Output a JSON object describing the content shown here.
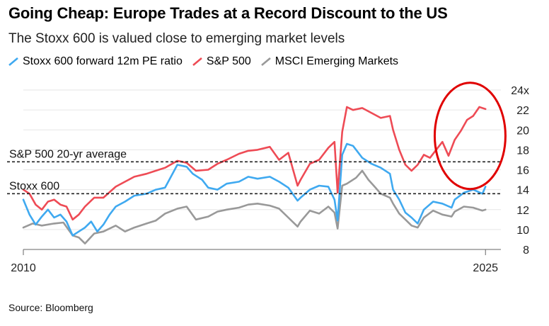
{
  "title": "Going Cheap: Europe Trades at a Record Discount to the US",
  "subtitle": "The Stoxx 600 is valued close to emerging market levels",
  "source": "Source: Bloomberg",
  "colors": {
    "stoxx": "#3fa9f0",
    "sp500": "#ee4b55",
    "em": "#999999",
    "reference": "#222222",
    "annotation": "#e00000",
    "gridline": "#e6e6e6"
  },
  "chart_data": {
    "type": "line",
    "x_label_start": "2010",
    "x_label_end": "2025",
    "xlim": [
      2010,
      2025.5
    ],
    "ylim": [
      8,
      25
    ],
    "y_tick_labels": [
      "24x",
      "22",
      "20",
      "18",
      "16",
      "14",
      "12",
      "10",
      "8"
    ],
    "y_tick_values": [
      24,
      22,
      20,
      18,
      16,
      14,
      12,
      10,
      8
    ],
    "grid": true,
    "legend_position": "top-left",
    "series": [
      {
        "name": "Stoxx 600 forward 12m PE ratio",
        "color": "#3fa9f0",
        "x": [
          2010.0,
          2010.2,
          2010.4,
          2010.6,
          2010.8,
          2011.0,
          2011.2,
          2011.4,
          2011.6,
          2011.8,
          2012.0,
          2012.2,
          2012.4,
          2012.6,
          2012.8,
          2013.0,
          2013.3,
          2013.6,
          2014.0,
          2014.3,
          2014.6,
          2015.0,
          2015.3,
          2015.5,
          2015.8,
          2016.0,
          2016.3,
          2016.6,
          2017.0,
          2017.3,
          2017.6,
          2018.0,
          2018.3,
          2018.6,
          2018.9,
          2019.0,
          2019.3,
          2019.6,
          2019.9,
          2020.1,
          2020.2,
          2020.35,
          2020.5,
          2020.7,
          2021.0,
          2021.3,
          2021.6,
          2021.9,
          2022.0,
          2022.2,
          2022.4,
          2022.6,
          2022.8,
          2023.0,
          2023.3,
          2023.6,
          2023.9,
          2024.0,
          2024.3,
          2024.6,
          2024.9,
          2025.0
        ],
        "values": [
          13.0,
          11.5,
          10.5,
          11.3,
          12.0,
          11.2,
          11.5,
          10.8,
          9.4,
          9.8,
          10.2,
          10.8,
          9.8,
          10.5,
          11.5,
          12.3,
          12.8,
          13.4,
          13.6,
          14.0,
          14.2,
          16.5,
          16.3,
          15.6,
          15.0,
          14.2,
          14.0,
          14.6,
          14.8,
          15.3,
          15.1,
          15.3,
          14.8,
          14.2,
          12.9,
          13.2,
          14.0,
          14.4,
          14.3,
          13.0,
          10.9,
          17.5,
          18.6,
          18.4,
          17.2,
          16.6,
          16.2,
          15.6,
          14.0,
          13.0,
          11.7,
          11.2,
          10.6,
          12.0,
          12.8,
          12.6,
          12.2,
          13.0,
          13.7,
          14.0,
          13.6,
          14.3
        ]
      },
      {
        "name": "S&P 500",
        "color": "#ee4b55",
        "x": [
          2010.0,
          2010.2,
          2010.4,
          2010.6,
          2010.8,
          2011.0,
          2011.2,
          2011.4,
          2011.6,
          2011.8,
          2012.0,
          2012.3,
          2012.6,
          2013.0,
          2013.3,
          2013.6,
          2014.0,
          2014.3,
          2014.6,
          2015.0,
          2015.3,
          2015.6,
          2016.0,
          2016.3,
          2016.6,
          2017.0,
          2017.3,
          2017.6,
          2018.0,
          2018.3,
          2018.6,
          2018.9,
          2019.0,
          2019.3,
          2019.6,
          2019.9,
          2020.1,
          2020.2,
          2020.35,
          2020.5,
          2020.7,
          2021.0,
          2021.3,
          2021.6,
          2021.9,
          2022.0,
          2022.2,
          2022.4,
          2022.6,
          2022.8,
          2023.0,
          2023.2,
          2023.4,
          2023.6,
          2023.8,
          2024.0,
          2024.2,
          2024.4,
          2024.6,
          2024.8,
          2025.0
        ],
        "values": [
          14.0,
          13.6,
          12.5,
          12.0,
          12.8,
          13.0,
          12.5,
          12.3,
          11.0,
          11.5,
          12.3,
          13.2,
          13.2,
          14.3,
          14.8,
          15.3,
          15.6,
          15.9,
          16.2,
          16.9,
          16.7,
          15.9,
          16.0,
          16.6,
          17.0,
          17.6,
          17.9,
          18.0,
          18.3,
          17.0,
          17.7,
          14.4,
          15.0,
          16.6,
          17.0,
          18.2,
          18.8,
          13.7,
          19.8,
          22.3,
          22.0,
          22.2,
          21.7,
          21.2,
          21.4,
          20.0,
          18.0,
          16.5,
          15.9,
          16.5,
          17.5,
          17.2,
          18.0,
          18.8,
          17.4,
          19.0,
          19.9,
          21.0,
          21.4,
          22.3,
          22.1
        ]
      },
      {
        "name": "MSCI Emerging Markets",
        "color": "#999999",
        "x": [
          2010.0,
          2010.3,
          2010.6,
          2011.0,
          2011.3,
          2011.6,
          2011.8,
          2012.0,
          2012.3,
          2012.6,
          2013.0,
          2013.3,
          2013.6,
          2014.0,
          2014.3,
          2014.6,
          2015.0,
          2015.3,
          2015.6,
          2016.0,
          2016.3,
          2016.6,
          2017.0,
          2017.3,
          2017.6,
          2018.0,
          2018.3,
          2018.6,
          2018.9,
          2019.0,
          2019.3,
          2019.6,
          2019.9,
          2020.1,
          2020.2,
          2020.35,
          2020.5,
          2020.8,
          2021.0,
          2021.2,
          2021.4,
          2021.6,
          2021.9,
          2022.0,
          2022.2,
          2022.4,
          2022.6,
          2022.8,
          2023.0,
          2023.3,
          2023.6,
          2023.9,
          2024.0,
          2024.3,
          2024.6,
          2024.9,
          2025.0
        ],
        "values": [
          10.2,
          10.6,
          10.4,
          10.6,
          10.7,
          9.4,
          9.2,
          8.6,
          9.6,
          9.8,
          10.4,
          9.8,
          10.2,
          10.6,
          10.9,
          11.6,
          12.1,
          12.3,
          11.0,
          11.3,
          11.8,
          12.0,
          12.2,
          12.5,
          12.6,
          12.4,
          12.1,
          11.2,
          10.3,
          10.8,
          11.9,
          11.6,
          12.3,
          11.7,
          10.1,
          14.4,
          14.6,
          15.2,
          15.9,
          15.0,
          14.3,
          13.6,
          13.2,
          12.6,
          11.6,
          11.0,
          10.4,
          10.2,
          11.2,
          11.9,
          11.5,
          11.3,
          11.8,
          12.3,
          12.2,
          11.9,
          12.0
        ]
      }
    ],
    "reference_lines": [
      {
        "label": "S&P 500 20-yr average",
        "value": 16.8
      },
      {
        "label": "Stoxx 600",
        "value": 13.6
      }
    ]
  }
}
